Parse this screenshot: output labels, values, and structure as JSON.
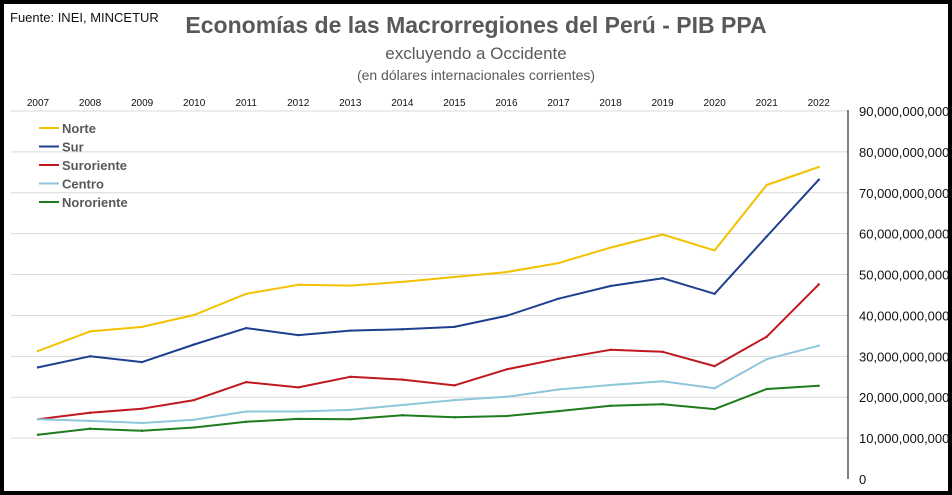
{
  "source": "Fuente: INEI, MINCETUR",
  "chart_data": {
    "type": "line",
    "title": "Economías de las Macrorregiones del Perú - PIB PPA",
    "subtitle": "excluyendo a Occidente",
    "subtitle2": "(en dólares internacionales corrientes)",
    "x": [
      "2007",
      "2008",
      "2009",
      "2010",
      "2011",
      "2012",
      "2013",
      "2014",
      "2015",
      "2016",
      "2017",
      "2018",
      "2019",
      "2020",
      "2021",
      "2022"
    ],
    "y_ticks": [
      "0",
      "10,000,000,000",
      "20,000,000,000",
      "30,000,000,000",
      "40,000,000,000",
      "50,000,000,000",
      "60,000,000,000",
      "70,000,000,000",
      "80,000,000,000",
      "90,000,000,000"
    ],
    "ylim": [
      0,
      90000000000
    ],
    "y_axis_side": "right",
    "x_axis_side": "top",
    "grid": true,
    "legend_position": "top-left",
    "series": [
      {
        "name": "Norte",
        "color": "#F2C200",
        "values": [
          31.3,
          36.1,
          37.2,
          40.1,
          45.3,
          47.5,
          47.3,
          48.2,
          49.4,
          50.6,
          52.8,
          56.6,
          59.8,
          55.9,
          71.9,
          76.3
        ]
      },
      {
        "name": "Sur",
        "color": "#1F3F8F",
        "values": [
          27.3,
          30.0,
          28.6,
          32.9,
          36.9,
          35.2,
          36.3,
          36.6,
          37.2,
          39.9,
          44.1,
          47.2,
          49.1,
          45.3,
          59.3,
          73.2
        ]
      },
      {
        "name": "Suroriente",
        "color": "#C0191D",
        "values": [
          14.6,
          16.2,
          17.2,
          19.3,
          23.7,
          22.4,
          25.0,
          24.3,
          22.9,
          26.8,
          29.4,
          31.6,
          31.1,
          27.6,
          34.8,
          47.6
        ]
      },
      {
        "name": "Centro",
        "color": "#8EC6DB",
        "values": [
          14.6,
          14.2,
          13.7,
          14.5,
          16.5,
          16.5,
          16.9,
          18.1,
          19.3,
          20.1,
          21.9,
          23.0,
          23.9,
          22.2,
          29.3,
          32.6
        ]
      },
      {
        "name": "Nororiente",
        "color": "#1E7B1E",
        "values": [
          10.8,
          12.3,
          11.8,
          12.6,
          14.0,
          14.7,
          14.6,
          15.6,
          15.1,
          15.4,
          16.6,
          17.9,
          18.3,
          17.1,
          22.0,
          22.8
        ]
      }
    ],
    "value_unit_note": "values in billions (1e9) of international dollars"
  }
}
